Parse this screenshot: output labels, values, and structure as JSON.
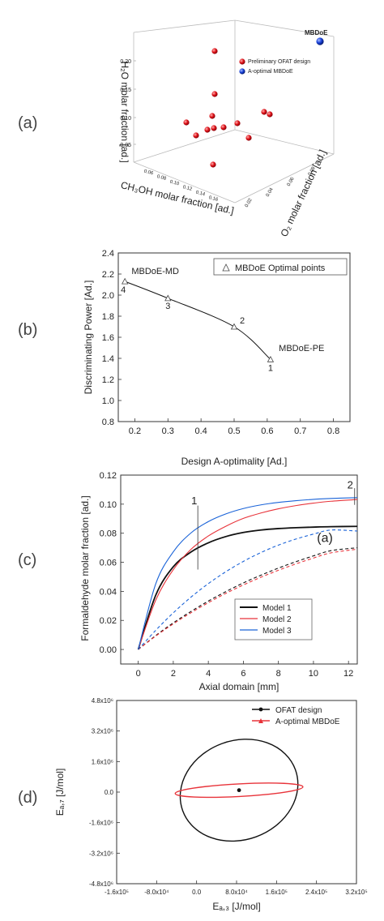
{
  "panel_labels": [
    "(a)",
    "(b)",
    "(c)",
    "(d)"
  ],
  "chart_data": [
    {
      "type": "scatter",
      "projection": "3d",
      "zlabel": "H₂O molar fraction [ad.]",
      "xlabel": "CH₃OH molar fraction [ad.]",
      "ylabel": "O₂ molar fraction [ad.]",
      "z_ticks": [
        "0.05",
        "0.10",
        "0.15",
        "0.20"
      ],
      "x_ticks": [
        "0.06",
        "0.08",
        "0.10",
        "0.12",
        "0.14",
        "0.16"
      ],
      "y_ticks": [
        "0.02",
        "0.04",
        "0.06",
        "0.08"
      ],
      "legend": [
        "Preliminary OFAT design",
        "A-optimal MBDoE"
      ],
      "annotation": "MBDoE",
      "colors": {
        "ofat": "#e0141a",
        "mbdoe": "#1740d8"
      },
      "legend_placement": "top-right"
    },
    {
      "type": "line",
      "xlabel": "Design A-optimality [Ad.]",
      "ylabel": "Discriminating Power [Ad.]",
      "xlim": [
        0.15,
        0.85
      ],
      "ylim": [
        0.8,
        2.4
      ],
      "x_ticks": [
        "0.2",
        "0.3",
        "0.4",
        "0.5",
        "0.6",
        "0.7",
        "0.8"
      ],
      "y_ticks": [
        "0.8",
        "1.0",
        "1.2",
        "1.4",
        "1.6",
        "1.8",
        "2.0",
        "2.2",
        "2.4"
      ],
      "legend": [
        "MBDoE Optimal points"
      ],
      "legend_placement": "top-right",
      "points": [
        {
          "x": 0.61,
          "y": 1.39,
          "label": "1"
        },
        {
          "x": 0.5,
          "y": 1.7,
          "label": "2"
        },
        {
          "x": 0.3,
          "y": 1.97,
          "label": "3"
        },
        {
          "x": 0.17,
          "y": 2.13,
          "label": "4"
        }
      ],
      "annotations": [
        {
          "text": "MBDoE-MD",
          "x": 0.19,
          "y": 2.2
        },
        {
          "text": "MBDoE-PE",
          "x": 0.635,
          "y": 1.47
        }
      ]
    },
    {
      "type": "line",
      "xlabel": "Axial domain [mm]",
      "ylabel": "Formaldehyde molar fraction [ad.]",
      "xlim": [
        -1,
        12.5
      ],
      "ylim": [
        -0.01,
        0.12
      ],
      "x_ticks": [
        "0",
        "2",
        "4",
        "6",
        "8",
        "10",
        "12"
      ],
      "y_ticks": [
        "0.00",
        "0.02",
        "0.04",
        "0.06",
        "0.08",
        "0.10",
        "0.12"
      ],
      "legend": [
        "Model 1",
        "Model 2",
        "Model 3"
      ],
      "legend_placement": "bottom-right",
      "colors": [
        "#111111",
        "#e8333a",
        "#1a63d8"
      ],
      "x": [
        0,
        1,
        2,
        3,
        4,
        5,
        6,
        7,
        8,
        9,
        10,
        11,
        12.5
      ],
      "series": [
        {
          "name": "Model 1",
          "style": "solid",
          "values": [
            0,
            0.0374,
            0.0569,
            0.067,
            0.0734,
            0.0777,
            0.0805,
            0.0822,
            0.0832,
            0.0838,
            0.0842,
            0.0845,
            0.0847
          ]
        },
        {
          "name": "Model 2",
          "style": "solid",
          "values": [
            0,
            0.034,
            0.0549,
            0.0688,
            0.0781,
            0.0848,
            0.0902,
            0.0939,
            0.0968,
            0.099,
            0.1007,
            0.102,
            0.1032
          ]
        },
        {
          "name": "Model 3",
          "style": "solid",
          "values": [
            0,
            0.0452,
            0.0672,
            0.0801,
            0.088,
            0.0933,
            0.097,
            0.0995,
            0.1012,
            0.1024,
            0.1033,
            0.1039,
            0.1045
          ]
        },
        {
          "name": "Model 1",
          "style": "dashed",
          "values": [
            0,
            0.0096,
            0.0183,
            0.0261,
            0.0333,
            0.0398,
            0.0458,
            0.0511,
            0.056,
            0.0604,
            0.0644,
            0.068,
            0.07
          ]
        },
        {
          "name": "Model 2",
          "style": "dashed",
          "values": [
            0,
            0.0092,
            0.0176,
            0.0252,
            0.0322,
            0.0386,
            0.0444,
            0.0497,
            0.0545,
            0.0589,
            0.0629,
            0.0665,
            0.069
          ]
        },
        {
          "name": "Model 3",
          "style": "dashed",
          "values": [
            0,
            0.0132,
            0.0252,
            0.0359,
            0.0453,
            0.0535,
            0.0606,
            0.0667,
            0.0718,
            0.076,
            0.0794,
            0.0822,
            0.0815
          ]
        }
      ],
      "annotations": [
        {
          "text": "1",
          "x": 3.4,
          "y": 0.1
        },
        {
          "text": "2",
          "x": 12.3,
          "y": 0.113
        },
        {
          "text": "(a)",
          "x": 10.2,
          "y": 0.074
        }
      ]
    },
    {
      "type": "scatter",
      "xlabel": "Eₐ,₃ [J/mol]",
      "ylabel": "Eₐ,₇ [J/mol]",
      "xlim": [
        -160000,
        320000
      ],
      "ylim": [
        -4800000,
        4800000
      ],
      "x_ticks": [
        "-1.6x10⁵",
        "-8.0x10⁴",
        "0.0",
        "8.0x10⁴",
        "1.6x10⁵",
        "2.4x10⁵",
        "3.2x10⁵"
      ],
      "y_ticks": [
        "-4.8x10⁶",
        "-3.2x10⁶",
        "-1.6x10⁶",
        "0.0",
        "1.6x10⁶",
        "3.2x10⁶",
        "4.8x10⁶"
      ],
      "legend": [
        "OFAT design",
        "A-optimal MBDoE"
      ],
      "legend_placement": "top-right",
      "colors": {
        "ofat": "#111111",
        "mbdoe": "#e8333a"
      },
      "point": {
        "x": 85000,
        "y": 100000
      },
      "ellipses": [
        {
          "name": "OFAT design",
          "cx": 85000,
          "cy": 100000,
          "rx": 120000,
          "ry": 2600000,
          "angle": -20
        },
        {
          "name": "A-optimal MBDoE",
          "cx": 85000,
          "cy": 100000,
          "rx": 128000,
          "ry": 330000,
          "angle": -3
        }
      ]
    }
  ]
}
